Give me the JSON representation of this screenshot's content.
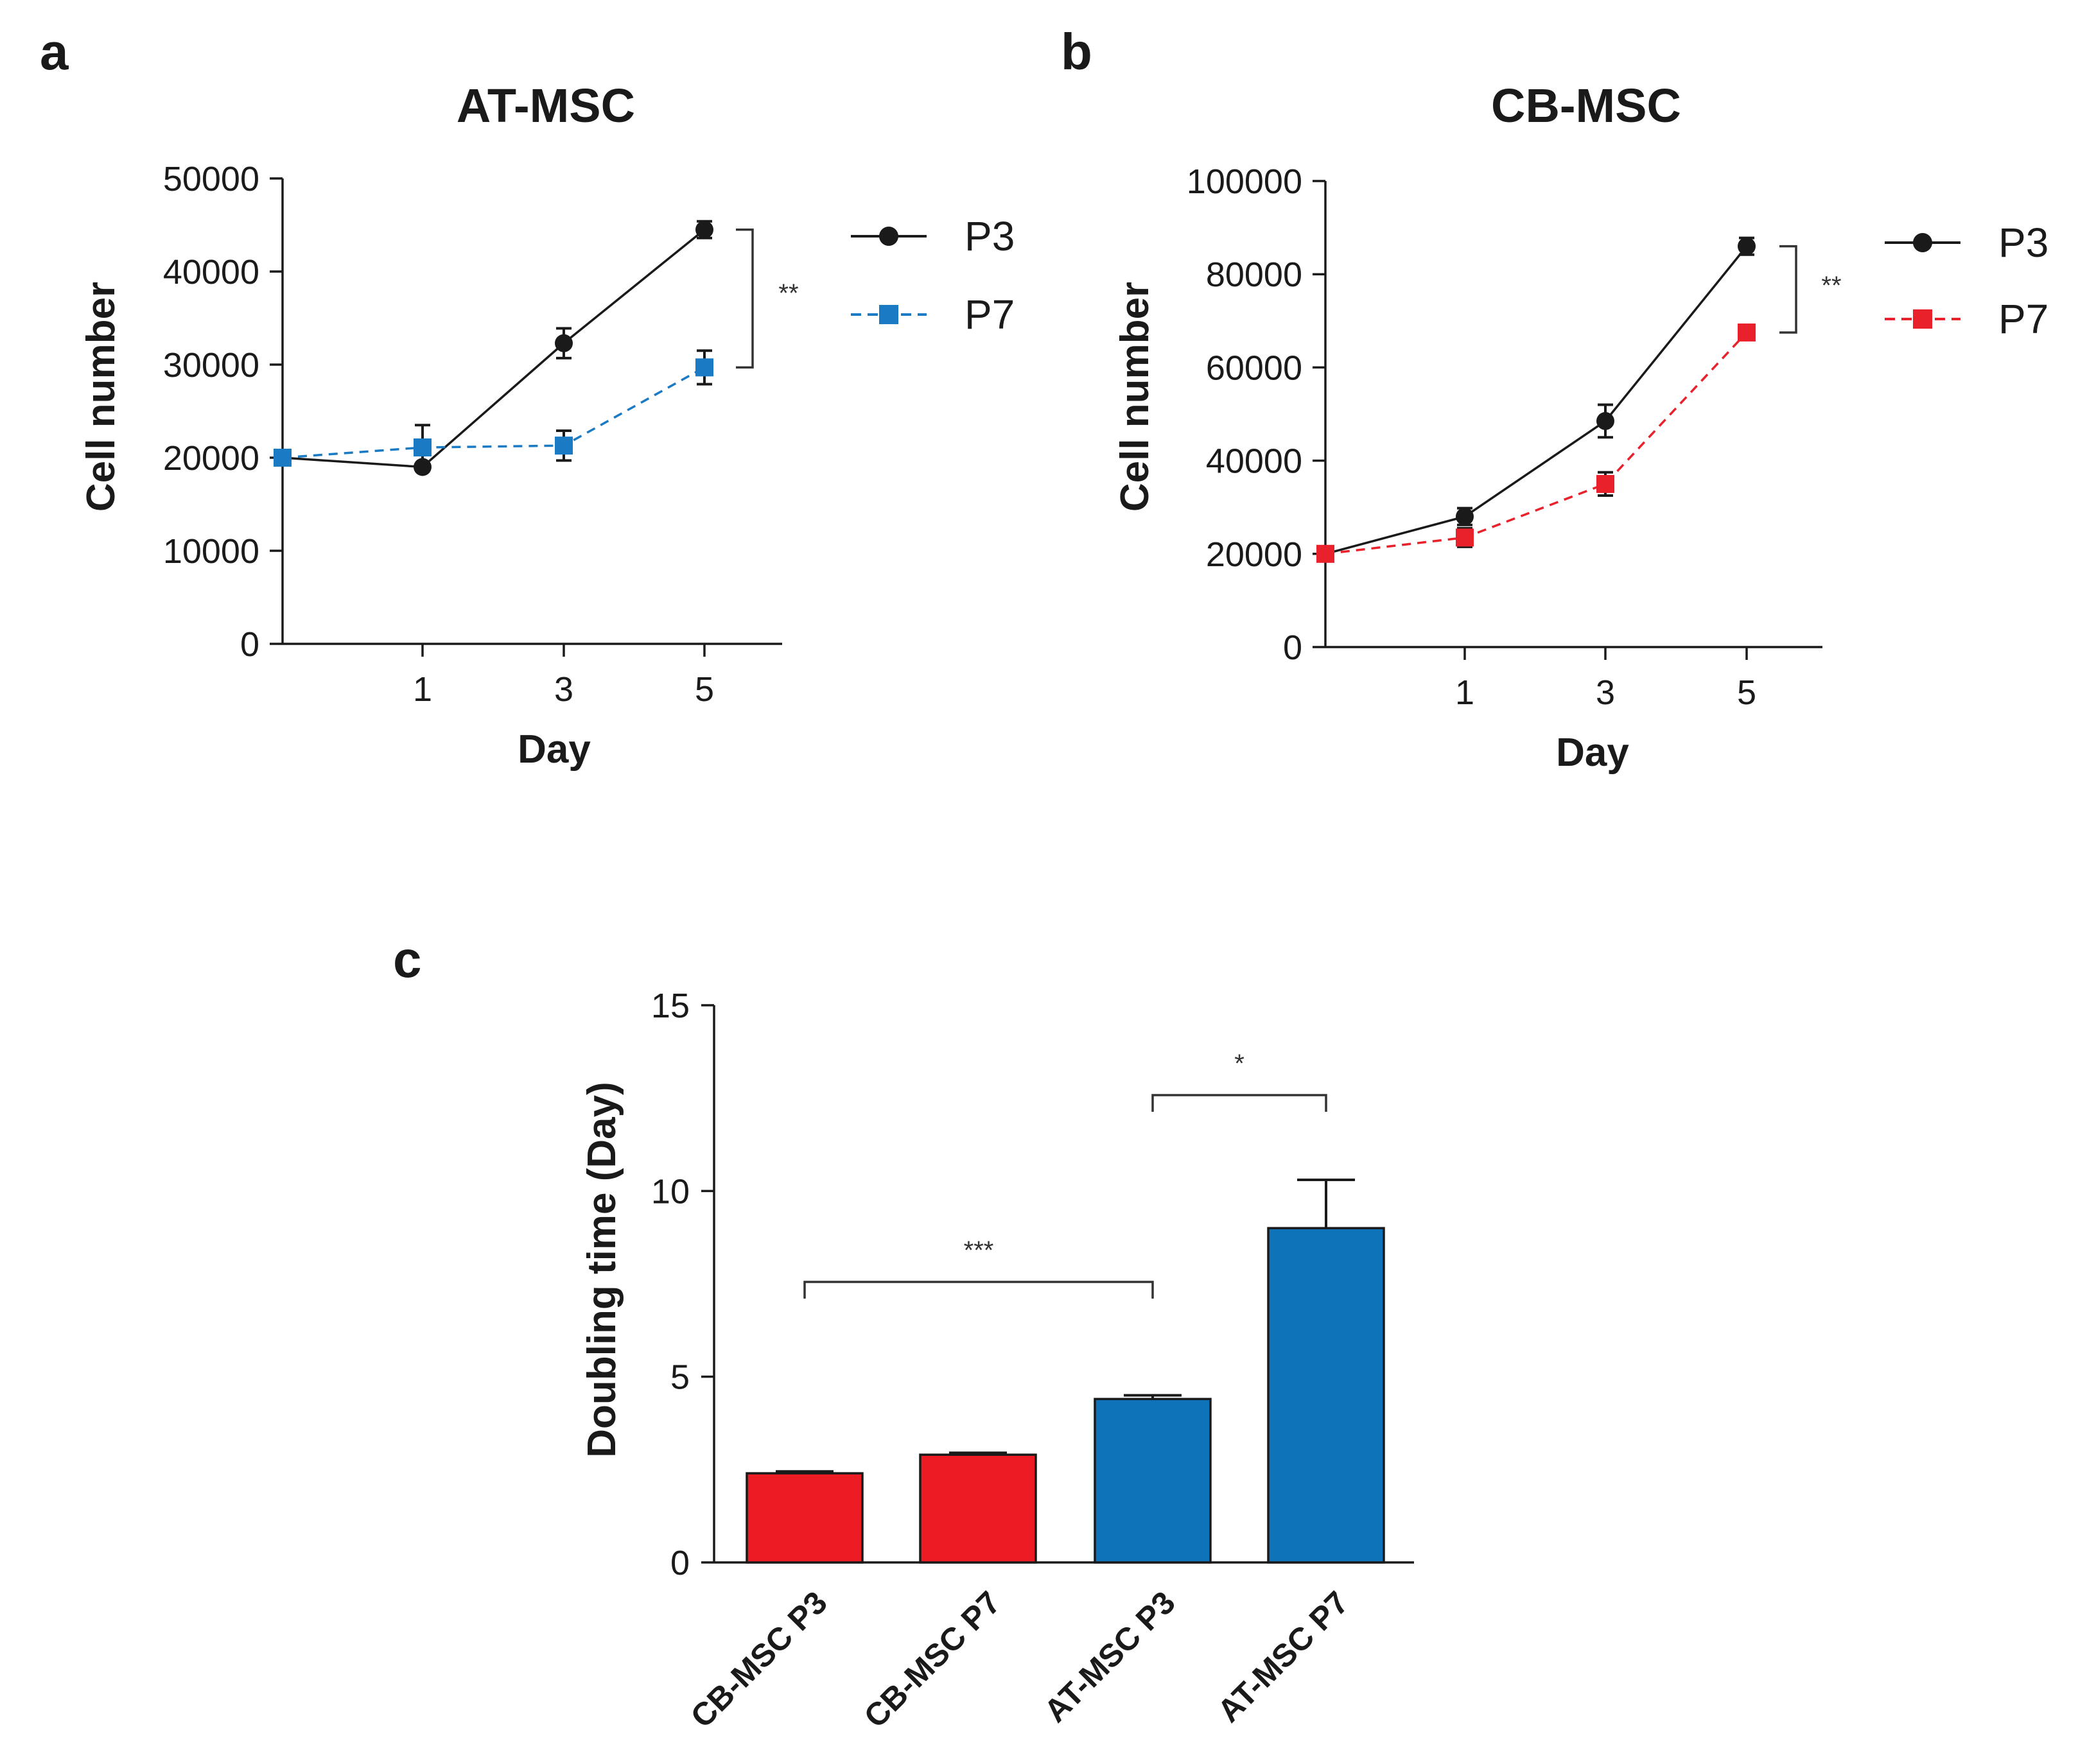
{
  "colors": {
    "p3": "#1a1a1a",
    "p7_at": "#1a7ac4",
    "p7_cb": "#e8212b",
    "bar_red": "#ed1c24",
    "bar_blue": "#0f73ba"
  },
  "chart_data": [
    {
      "panel": "a",
      "type": "line",
      "title": "AT-MSC",
      "xlabel": "Day",
      "ylabel": "Cell number",
      "x": [
        0,
        1,
        3,
        5
      ],
      "xticks": [
        1,
        3,
        5
      ],
      "ylim": [
        0,
        50000
      ],
      "yticks": [
        0,
        10000,
        20000,
        30000,
        40000,
        50000
      ],
      "series": [
        {
          "name": "P3",
          "marker": "circle",
          "style": "solid",
          "values": [
            20000,
            19000,
            32300,
            44500
          ],
          "errors": [
            0,
            300,
            1600,
            900
          ]
        },
        {
          "name": "P7",
          "marker": "square",
          "style": "dashed",
          "values": [
            20000,
            21100,
            21300,
            29700
          ],
          "errors": [
            0,
            2400,
            1600,
            1800
          ]
        }
      ],
      "significance": "**"
    },
    {
      "panel": "b",
      "type": "line",
      "title": "CB-MSC",
      "xlabel": "Day",
      "ylabel": "Cell number",
      "x": [
        0,
        1,
        3,
        5
      ],
      "xticks": [
        1,
        3,
        5
      ],
      "ylim": [
        0,
        100000
      ],
      "yticks": [
        0,
        20000,
        40000,
        60000,
        80000,
        100000
      ],
      "series": [
        {
          "name": "P3",
          "marker": "circle",
          "style": "solid",
          "values": [
            20000,
            28000,
            48500,
            86000
          ],
          "errors": [
            0,
            1800,
            3500,
            1800
          ]
        },
        {
          "name": "P7",
          "marker": "square",
          "style": "dashed",
          "values": [
            20000,
            23500,
            35000,
            67500
          ],
          "errors": [
            0,
            2000,
            2500,
            500
          ]
        }
      ],
      "significance": "**"
    },
    {
      "panel": "c",
      "type": "bar",
      "xlabel": "",
      "ylabel": "Doubling time (Day)",
      "categories": [
        "CB-MSC P3",
        "CB-MSC P7",
        "AT-MSC P3",
        "AT-MSC P7"
      ],
      "values": [
        2.4,
        2.9,
        4.4,
        9.0
      ],
      "errors": [
        0.05,
        0.05,
        0.1,
        1.3
      ],
      "ylim": [
        0,
        15
      ],
      "yticks": [
        0,
        5,
        10,
        15
      ],
      "comparisons": [
        {
          "from": 0,
          "to": 2,
          "label": "***"
        },
        {
          "from": 2,
          "to": 3,
          "label": "*"
        }
      ]
    }
  ]
}
